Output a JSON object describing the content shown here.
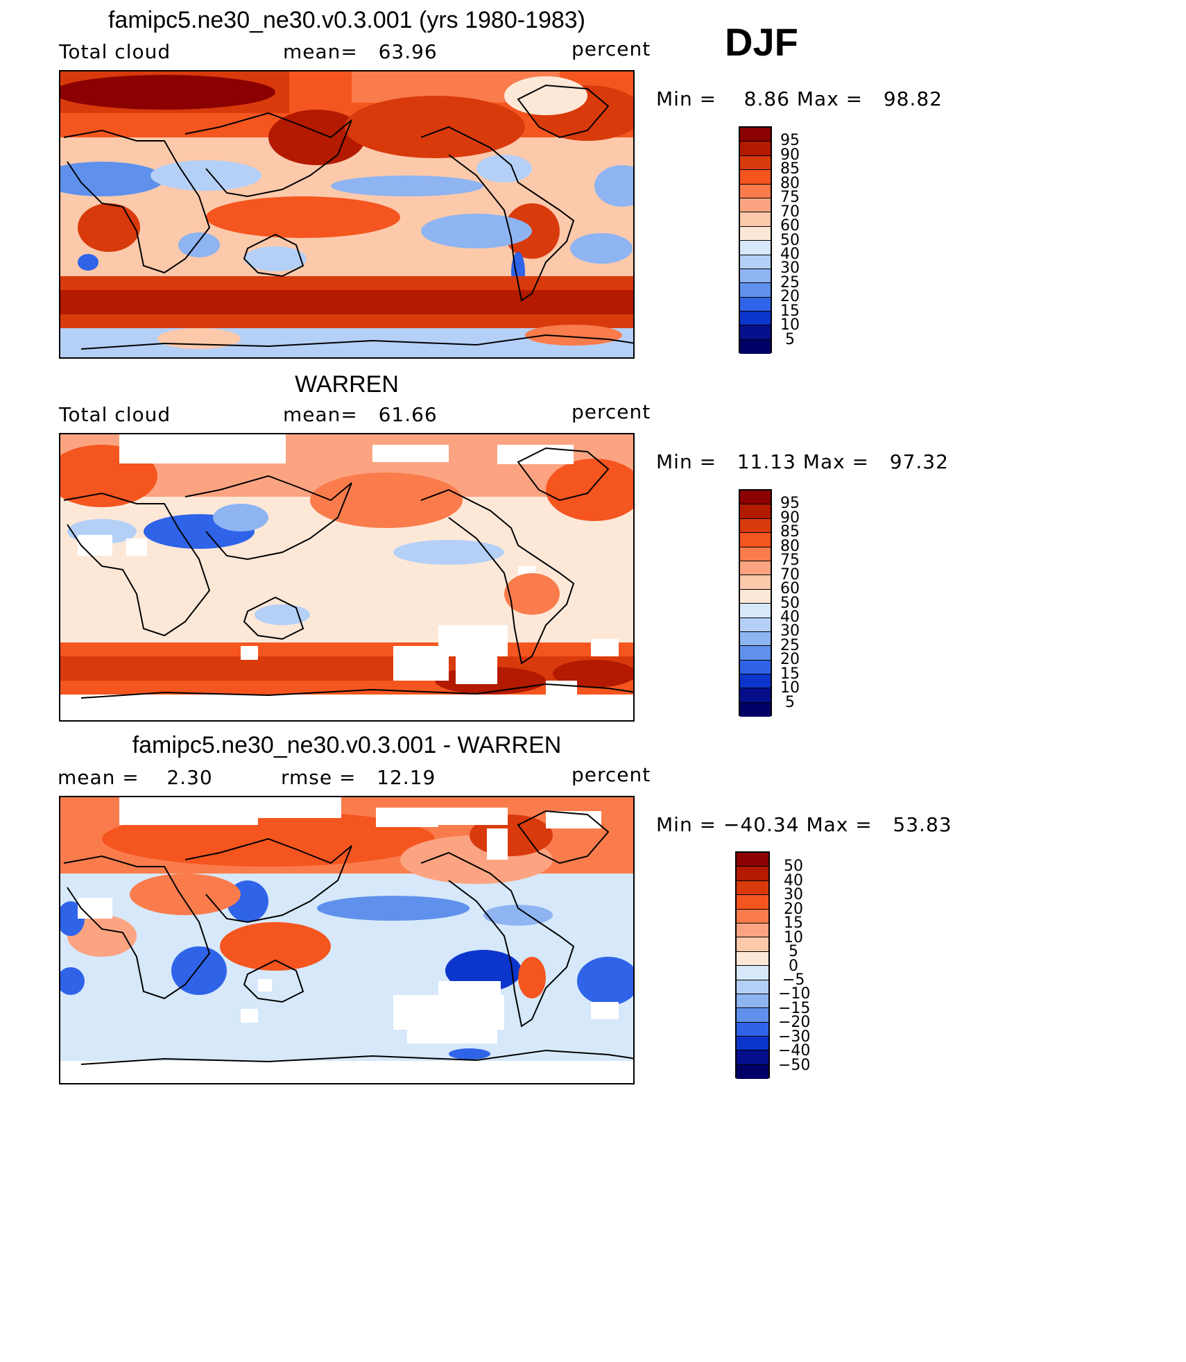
{
  "season": "DJF",
  "panels": [
    {
      "title": "famipc5.ne30_ne30.v0.3.001 (yrs 1980-1983)",
      "left_label": "Total cloud",
      "center_label": "mean=   63.96",
      "units": "percent",
      "minmax": "Min =    8.86 Max =   98.82",
      "colorbar_ticks": [
        "95",
        "90",
        "85",
        "80",
        "75",
        "70",
        "60",
        "50",
        "40",
        "30",
        "25",
        "20",
        "15",
        "10",
        "5"
      ]
    },
    {
      "title": "WARREN",
      "left_label": "Total cloud",
      "center_label": "mean=   61.66",
      "units": "percent",
      "minmax": "Min =   11.13 Max =   97.32",
      "colorbar_ticks": [
        "95",
        "90",
        "85",
        "80",
        "75",
        "70",
        "60",
        "50",
        "40",
        "30",
        "25",
        "20",
        "15",
        "10",
        "5"
      ]
    },
    {
      "title": "famipc5.ne30_ne30.v0.3.001 - WARREN",
      "left_label": "mean =    2.30",
      "center_label": "rmse =   12.19",
      "units": "percent",
      "minmax": "Min = −40.34 Max =   53.83",
      "colorbar_ticks": [
        "50",
        "40",
        "30",
        "20",
        "15",
        "10",
        "5",
        "0",
        "−5",
        "−10",
        "−15",
        "−20",
        "−30",
        "−40",
        "−50"
      ]
    }
  ],
  "colors": {
    "scale": [
      "#8b0000",
      "#b31a00",
      "#d93a0c",
      "#f5551f",
      "#fa7c4c",
      "#fca482",
      "#fcc9ab",
      "#fde8d8",
      "#d6e8fa",
      "#b4d0f7",
      "#8eb4f2",
      "#5f91ec",
      "#2f63e8",
      "#0c35cc",
      "#050f8c",
      "#000066"
    ],
    "background": "#fde8d8",
    "coastline": "#000000",
    "missing": "#ffffff"
  },
  "field_features": [
    "storm-track-north",
    "southern-ocean-cloud-belt",
    "itcz",
    "subtropical-dry-zones",
    "antarctica-missing",
    "continent-coastlines"
  ]
}
